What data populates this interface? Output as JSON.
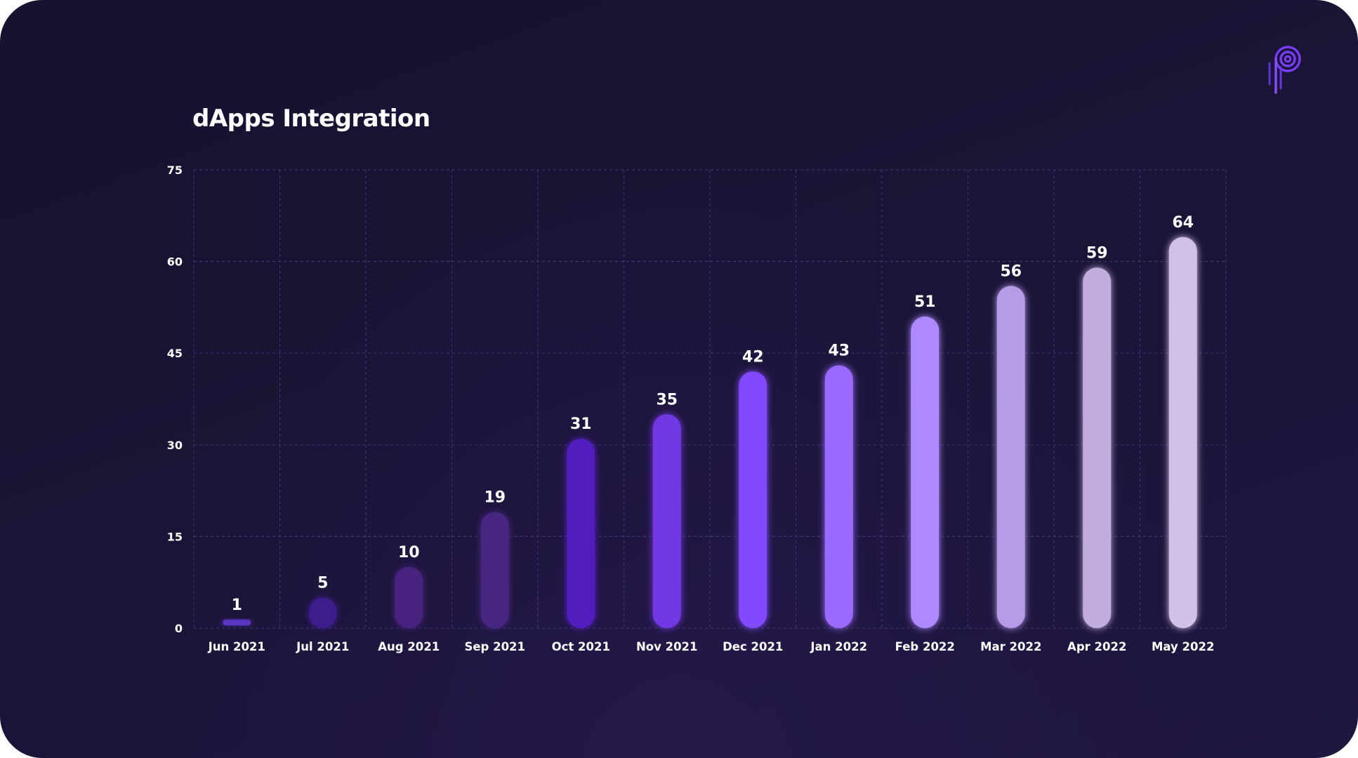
{
  "chart_data": {
    "type": "bar",
    "title": "dApps Integration",
    "xlabel": "",
    "ylabel": "",
    "ylim": [
      0,
      75
    ],
    "yticks": [
      0,
      15,
      30,
      45,
      60,
      75
    ],
    "grid": true,
    "categories": [
      "Jun 2021",
      "Jul 2021",
      "Aug 2021",
      "Sep 2021",
      "Oct 2021",
      "Nov 2021",
      "Dec 2021",
      "Jan 2022",
      "Feb 2022",
      "Mar 2022",
      "Apr 2022",
      "May 2022"
    ],
    "values": [
      1,
      5,
      10,
      19,
      31,
      35,
      42,
      43,
      51,
      56,
      59,
      64
    ],
    "bar_colors": [
      "#5a34c2",
      "#3c1f8c",
      "#46227e",
      "#462581",
      "#521fbe",
      "#7238e3",
      "#8248ff",
      "#9a6bff",
      "#ad88ff",
      "#b69be8",
      "#c1aedf",
      "#d1c1e6"
    ],
    "grid_color": "#3b3470",
    "label_color": "#ffffff"
  },
  "brand": {
    "logo_icon": "polkadot-style-p-logo-icon",
    "accent_color": "#8a4dff",
    "background_color": "#1a1435"
  }
}
